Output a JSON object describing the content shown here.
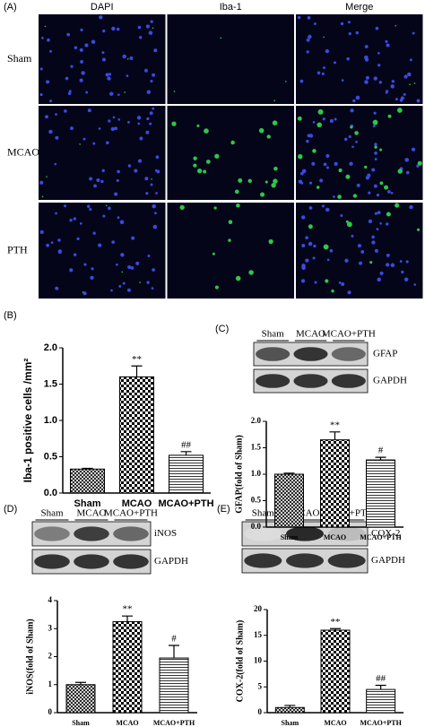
{
  "figure_a": {
    "panel": "(A)",
    "columns": [
      "DAPI",
      "Iba-1",
      "Merge"
    ],
    "rows": [
      "Sham",
      "MCAO",
      "PTH"
    ]
  },
  "blots": [
    {
      "panel": "(C)",
      "lanes": [
        "Sham",
        "MCAO",
        "MCAO+PTH"
      ],
      "bands": [
        "GFAP",
        "GAPDH"
      ]
    },
    {
      "panel": "(D)",
      "lanes": [
        "Sham",
        "MCAO",
        "MCAO+PTH"
      ],
      "bands": [
        "iNOS",
        "GAPDH"
      ]
    },
    {
      "panel": "(E)",
      "lanes": [
        "Sham",
        "MCAO",
        "MCAO+PTH"
      ],
      "bands": [
        "COX-2",
        "GAPDH"
      ]
    }
  ],
  "chart_data": [
    {
      "type": "bar",
      "panel": "(B)",
      "ylabel": "Iba-1 positive cells /mm²",
      "categories": [
        "Sham",
        "MCAO",
        "MCAO+PTH"
      ],
      "values": [
        0.33,
        1.6,
        0.52
      ],
      "errors": [
        0.01,
        0.15,
        0.05
      ],
      "annotations": [
        null,
        "**",
        "##"
      ],
      "color": "#000000",
      "ylim": [
        0,
        2
      ],
      "yticks": [
        {
          "value": 0,
          "label": "0.0"
        },
        {
          "value": 0.5,
          "label": "0.5"
        },
        {
          "value": 1,
          "label": "1.0"
        },
        {
          "value": 1.5,
          "label": "1.5"
        },
        {
          "value": 2,
          "label": "2.0"
        }
      ]
    },
    {
      "type": "bar",
      "ylabel": "GFAP(fold of Sham)",
      "categories": [
        "Sham",
        "MCAO",
        "MCAO+PTH"
      ],
      "values": [
        1.0,
        1.65,
        1.27
      ],
      "errors": [
        0.02,
        0.15,
        0.05
      ],
      "annotations": [
        null,
        "**",
        "#"
      ],
      "color": "#000000",
      "ylim": [
        0,
        2
      ],
      "yticks": [
        {
          "value": 0,
          "label": "0.0"
        },
        {
          "value": 0.5,
          "label": "0.5"
        },
        {
          "value": 1,
          "label": "1.0"
        },
        {
          "value": 1.5,
          "label": "1.5"
        },
        {
          "value": 2,
          "label": "2.0"
        }
      ]
    },
    {
      "type": "bar",
      "ylabel": "iNOS(fold of Sham)",
      "categories": [
        "Sham",
        "MCAO",
        "MCAO+PTH"
      ],
      "values": [
        1.0,
        3.25,
        1.95
      ],
      "errors": [
        0.08,
        0.2,
        0.45
      ],
      "annotations": [
        null,
        "**",
        "#"
      ],
      "color": "#000000",
      "ylim": [
        0,
        4
      ],
      "yticks": [
        0,
        1,
        2,
        3,
        4
      ]
    },
    {
      "type": "bar",
      "ylabel": "COX-2(fold of Sham)",
      "categories": [
        "Sham",
        "MCAO",
        "MCAO+PTH"
      ],
      "values": [
        1.0,
        16.0,
        4.5
      ],
      "errors": [
        0.4,
        0.3,
        0.8
      ],
      "annotations": [
        null,
        "**",
        "##"
      ],
      "color": "#000000",
      "ylim": [
        0,
        20
      ],
      "yticks": [
        0,
        5,
        10,
        15,
        20
      ]
    }
  ]
}
